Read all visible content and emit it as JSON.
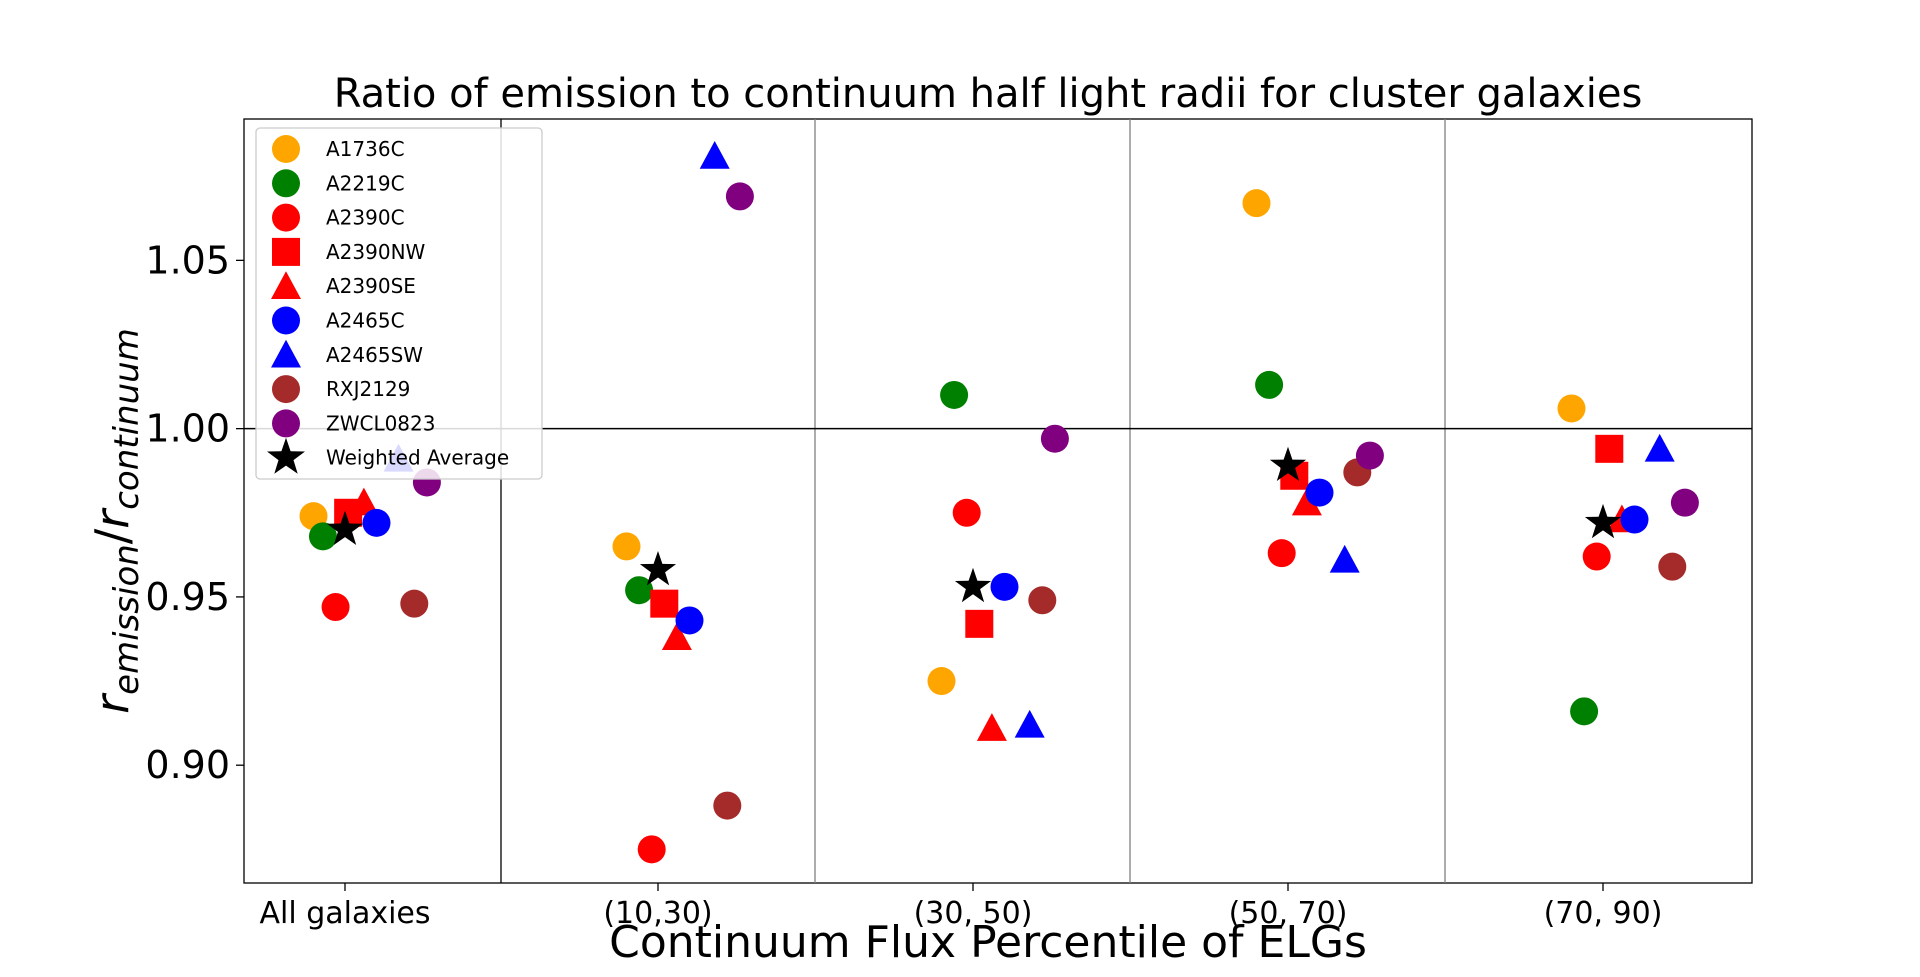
{
  "chart_data": {
    "type": "scatter",
    "title": "Ratio of emission to continuum half light radii for cluster galaxies",
    "xlabel": "Continuum Flux Percentile of ELGs",
    "ylabel_base": "r",
    "ylabel_sub1": "emission",
    "ylabel_slash": "/",
    "ylabel_sub2": "continuum",
    "categories": [
      "All galaxies",
      "(10,30)",
      "(30, 50)",
      "(50, 70)",
      "(70, 90)"
    ],
    "ylim": [
      0.865,
      1.092
    ],
    "yticks": [
      {
        "value": 0.9,
        "label": "0.90"
      },
      {
        "value": 0.95,
        "label": "0.95"
      },
      {
        "value": 1.0,
        "label": "1.00"
      },
      {
        "value": 1.05,
        "label": "1.05"
      }
    ],
    "reference_line": 1.0,
    "legend_position": "upper-left",
    "series": [
      {
        "name": "A1736C",
        "color": "#FFA500",
        "marker": "circle",
        "points": [
          {
            "group": 0,
            "offset": -0.1,
            "y": 0.974
          },
          {
            "group": 1,
            "offset": -0.1,
            "y": 0.965
          },
          {
            "group": 2,
            "offset": -0.1,
            "y": 0.925
          },
          {
            "group": 3,
            "offset": -0.1,
            "y": 1.067
          },
          {
            "group": 4,
            "offset": -0.1,
            "y": 1.006
          }
        ]
      },
      {
        "name": "A2219C",
        "color": "#008000",
        "marker": "circle",
        "points": [
          {
            "group": 0,
            "offset": -0.07,
            "y": 0.968
          },
          {
            "group": 1,
            "offset": -0.06,
            "y": 0.952
          },
          {
            "group": 2,
            "offset": -0.06,
            "y": 1.01
          },
          {
            "group": 3,
            "offset": -0.06,
            "y": 1.013
          },
          {
            "group": 4,
            "offset": -0.06,
            "y": 0.916
          }
        ]
      },
      {
        "name": "A2390C",
        "color": "#FF0000",
        "marker": "circle",
        "points": [
          {
            "group": 0,
            "offset": -0.03,
            "y": 0.947
          },
          {
            "group": 1,
            "offset": -0.02,
            "y": 0.875
          },
          {
            "group": 2,
            "offset": -0.02,
            "y": 0.975
          },
          {
            "group": 3,
            "offset": -0.02,
            "y": 0.963
          },
          {
            "group": 4,
            "offset": -0.02,
            "y": 0.962
          }
        ]
      },
      {
        "name": "A2390NW",
        "color": "#FF0000",
        "marker": "square",
        "points": [
          {
            "group": 0,
            "offset": 0.01,
            "y": 0.975
          },
          {
            "group": 1,
            "offset": 0.02,
            "y": 0.948
          },
          {
            "group": 2,
            "offset": 0.02,
            "y": 0.942
          },
          {
            "group": 3,
            "offset": 0.02,
            "y": 0.986
          },
          {
            "group": 4,
            "offset": 0.02,
            "y": 0.994
          }
        ]
      },
      {
        "name": "A2390SE",
        "color": "#FF0000",
        "marker": "triangle",
        "points": [
          {
            "group": 0,
            "offset": 0.06,
            "y": 0.978
          },
          {
            "group": 1,
            "offset": 0.06,
            "y": 0.938
          },
          {
            "group": 2,
            "offset": 0.06,
            "y": 0.911
          },
          {
            "group": 3,
            "offset": 0.06,
            "y": 0.978
          },
          {
            "group": 4,
            "offset": 0.06,
            "y": 0.973
          }
        ]
      },
      {
        "name": "A2465C",
        "color": "#0000FF",
        "marker": "circle",
        "points": [
          {
            "group": 0,
            "offset": 0.1,
            "y": 0.972
          },
          {
            "group": 1,
            "offset": 0.1,
            "y": 0.943
          },
          {
            "group": 2,
            "offset": 0.1,
            "y": 0.953
          },
          {
            "group": 3,
            "offset": 0.1,
            "y": 0.981
          },
          {
            "group": 4,
            "offset": 0.1,
            "y": 0.973
          }
        ]
      },
      {
        "name": "A2465SW",
        "color": "#0000FF",
        "marker": "triangle",
        "points": [
          {
            "group": 0,
            "offset": 0.17,
            "y": 0.991
          },
          {
            "group": 1,
            "offset": 0.18,
            "y": 1.081
          },
          {
            "group": 2,
            "offset": 0.18,
            "y": 0.912
          },
          {
            "group": 3,
            "offset": 0.18,
            "y": 0.961
          },
          {
            "group": 4,
            "offset": 0.18,
            "y": 0.994
          }
        ]
      },
      {
        "name": "RXJ2129",
        "color": "#A52A2A",
        "marker": "circle",
        "points": [
          {
            "group": 0,
            "offset": 0.22,
            "y": 0.948
          },
          {
            "group": 1,
            "offset": 0.22,
            "y": 0.888
          },
          {
            "group": 2,
            "offset": 0.22,
            "y": 0.949
          },
          {
            "group": 3,
            "offset": 0.22,
            "y": 0.987
          },
          {
            "group": 4,
            "offset": 0.22,
            "y": 0.959
          }
        ]
      },
      {
        "name": "ZWCL0823",
        "color": "#800080",
        "marker": "circle",
        "points": [
          {
            "group": 0,
            "offset": 0.26,
            "y": 0.984
          },
          {
            "group": 1,
            "offset": 0.26,
            "y": 1.069
          },
          {
            "group": 2,
            "offset": 0.26,
            "y": 0.997
          },
          {
            "group": 3,
            "offset": 0.26,
            "y": 0.992
          },
          {
            "group": 4,
            "offset": 0.26,
            "y": 0.978
          }
        ]
      },
      {
        "name": "Weighted Average",
        "color": "#000000",
        "marker": "star",
        "points": [
          {
            "group": 0,
            "offset": 0.0,
            "y": 0.97
          },
          {
            "group": 1,
            "offset": 0.0,
            "y": 0.958
          },
          {
            "group": 2,
            "offset": 0.0,
            "y": 0.953
          },
          {
            "group": 3,
            "offset": 0.0,
            "y": 0.989
          },
          {
            "group": 4,
            "offset": 0.0,
            "y": 0.972
          }
        ]
      }
    ]
  }
}
